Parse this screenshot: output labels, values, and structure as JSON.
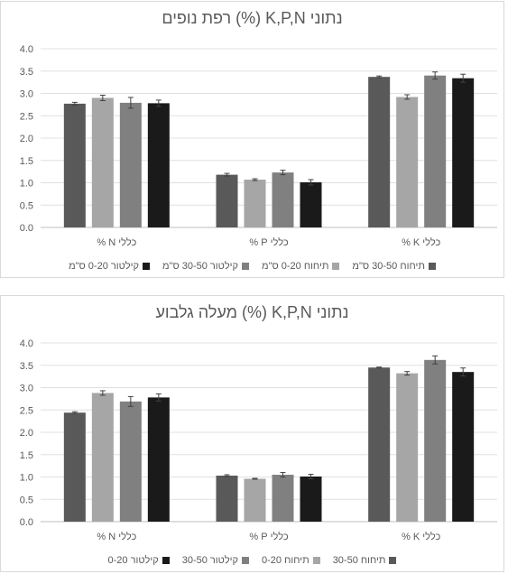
{
  "chart_data": [
    {
      "type": "bar",
      "title": "נתוני K,P,N (%) רפת נופים",
      "categories": [
        "כללי N %",
        "כללי P %",
        "כללי K %"
      ],
      "ylim": [
        0,
        4
      ],
      "yticks": [
        "0.0",
        "0.5",
        "1.0",
        "1.5",
        "2.0",
        "2.5",
        "3.0",
        "3.5",
        "4.0"
      ],
      "grid": true,
      "legend_position": "bottom",
      "series": [
        {
          "name": "תיחוח 30-50 ס\"מ",
          "color": "#595959",
          "values": [
            2.77,
            1.18,
            3.37
          ],
          "errors": [
            0.03,
            0.03,
            0.02
          ]
        },
        {
          "name": "תיחוח 0-20 ס\"מ",
          "color": "#a6a6a6",
          "values": [
            2.9,
            1.07,
            2.92
          ],
          "errors": [
            0.06,
            0.02,
            0.05
          ]
        },
        {
          "name": "קילטור 30-50 ס\"מ",
          "color": "#808080",
          "values": [
            2.79,
            1.23,
            3.4
          ],
          "errors": [
            0.12,
            0.05,
            0.08
          ]
        },
        {
          "name": "קילטור 0-20 ס\"מ",
          "color": "#1a1a1a",
          "values": [
            2.78,
            1.01,
            3.34
          ],
          "errors": [
            0.07,
            0.06,
            0.09
          ]
        }
      ]
    },
    {
      "type": "bar",
      "title": "נתוני K,P,N (%) מעלה גלבוע",
      "categories": [
        "כללי N %",
        "כללי P %",
        "כללי K %"
      ],
      "ylim": [
        0,
        4
      ],
      "yticks": [
        "0.0",
        "0.5",
        "1.0",
        "1.5",
        "2.0",
        "2.5",
        "3.0",
        "3.5",
        "4.0"
      ],
      "grid": true,
      "legend_position": "bottom",
      "series": [
        {
          "name": "תיחוח 30-50",
          "color": "#595959",
          "values": [
            2.44,
            1.03,
            3.45
          ],
          "errors": [
            0.02,
            0.02,
            0.01
          ]
        },
        {
          "name": "תיחוח 0-20",
          "color": "#a6a6a6",
          "values": [
            2.88,
            0.96,
            3.32
          ],
          "errors": [
            0.05,
            0.01,
            0.04
          ]
        },
        {
          "name": "קילטור 30-50",
          "color": "#808080",
          "values": [
            2.69,
            1.05,
            3.62
          ],
          "errors": [
            0.11,
            0.05,
            0.09
          ]
        },
        {
          "name": "קילטור 0-20",
          "color": "#1a1a1a",
          "values": [
            2.78,
            1.01,
            3.35
          ],
          "errors": [
            0.08,
            0.05,
            0.09
          ]
        }
      ]
    }
  ]
}
